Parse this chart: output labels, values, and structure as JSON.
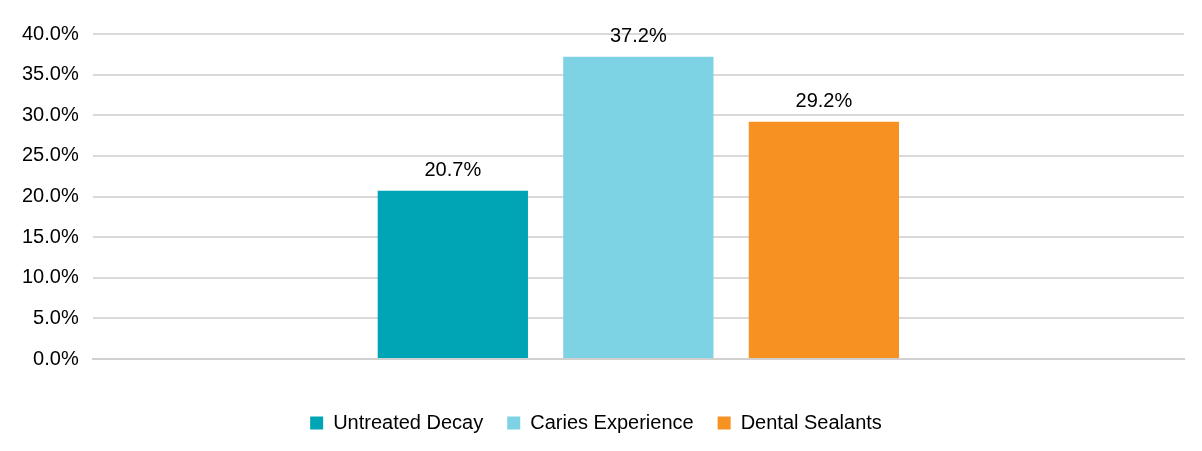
{
  "chart_data": {
    "type": "bar",
    "categories": [
      null
    ],
    "series": [
      {
        "name": "Untreated Decay",
        "color": "#00a5b5",
        "values": [
          20.7
        ],
        "value_labels": [
          "20.7%"
        ]
      },
      {
        "name": "Caries Experience",
        "color": "#7dd3e3",
        "values": [
          37.2
        ],
        "value_labels": [
          "37.2%"
        ]
      },
      {
        "name": "Dental Sealants",
        "color": "#f79122",
        "values": [
          29.2
        ],
        "value_labels": [
          "29.2%"
        ]
      }
    ],
    "ylim": [
      0,
      40
    ],
    "yticks": [
      {
        "value": 0,
        "label": "0.0%"
      },
      {
        "value": 5,
        "label": "5.0%"
      },
      {
        "value": 10,
        "label": "10.0%"
      },
      {
        "value": 15,
        "label": "15.0%"
      },
      {
        "value": 20,
        "label": "20.0%"
      },
      {
        "value": 25,
        "label": "25.0%"
      },
      {
        "value": 30,
        "label": "30.0%"
      },
      {
        "value": 35,
        "label": "35.0%"
      },
      {
        "value": 40,
        "label": "40.0%"
      }
    ],
    "grid": "y",
    "legend": "bottom"
  }
}
